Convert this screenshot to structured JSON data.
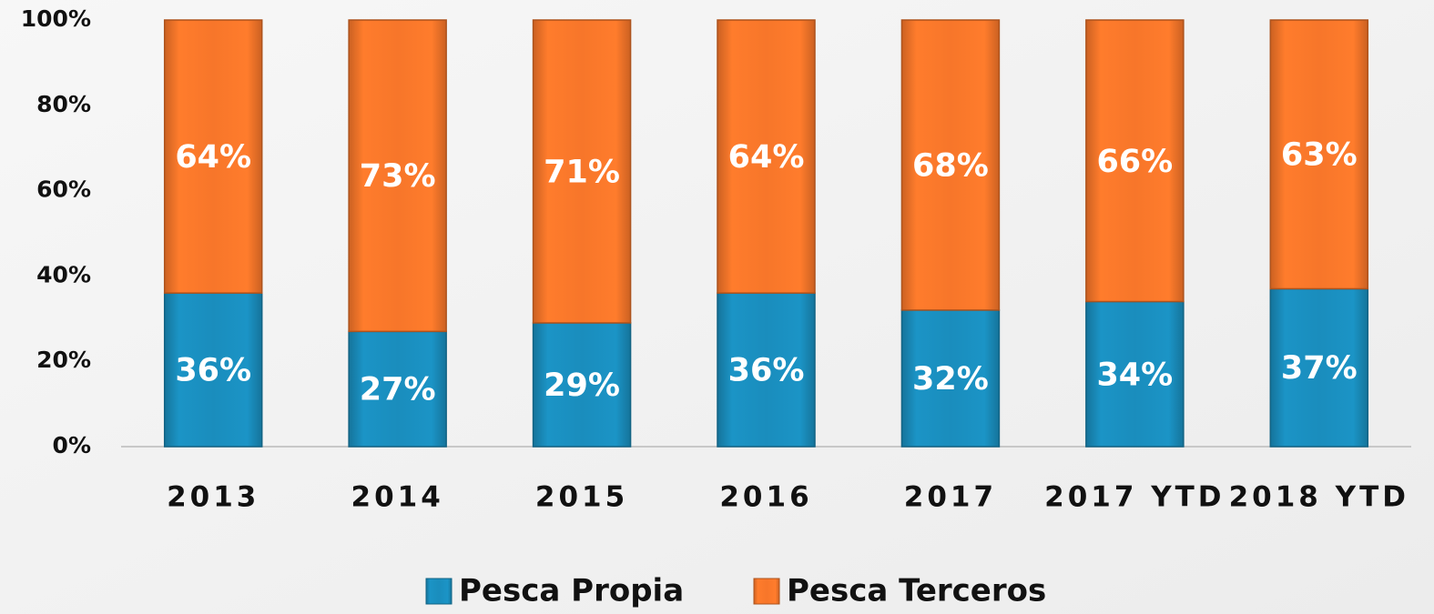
{
  "chart_data": {
    "type": "stacked_bar",
    "categories": [
      "2013",
      "2014",
      "2015",
      "2016",
      "2017",
      "2017 YTD",
      "2018 YTD"
    ],
    "series": [
      {
        "name": "Pesca Propia",
        "color": "#1a8dbd",
        "values": [
          36,
          27,
          29,
          36,
          32,
          34,
          37
        ],
        "value_labels": [
          "36%",
          "27%",
          "29%",
          "36%",
          "32%",
          "34%",
          "37%"
        ]
      },
      {
        "name": "Pesca Terceros",
        "color": "#f7762a",
        "values": [
          64,
          73,
          71,
          64,
          68,
          66,
          63
        ],
        "value_labels": [
          "64%",
          "73%",
          "71%",
          "64%",
          "68%",
          "66%",
          "63%"
        ]
      }
    ],
    "ylim": [
      0,
      100
    ],
    "yticks": [
      {
        "value": 0,
        "label": "0%"
      },
      {
        "value": 20,
        "label": "20%"
      },
      {
        "value": 40,
        "label": "40%"
      },
      {
        "value": 60,
        "label": "60%"
      },
      {
        "value": 80,
        "label": "80%"
      },
      {
        "value": 100,
        "label": "100%"
      }
    ],
    "grid": false,
    "legend": "bottom"
  }
}
